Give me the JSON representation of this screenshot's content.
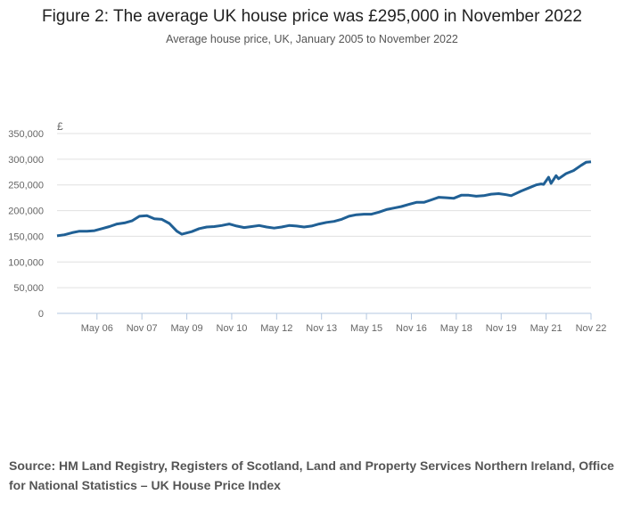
{
  "title": "Figure 2: The average UK house price was £295,000 in November 2022",
  "subtitle": "Average house price, UK, January 2005 to November 2022",
  "source": "Source: HM Land Registry, Registers of Scotland, Land and Property Services Northern Ireland, Office for National Statistics – UK House Price Index",
  "chart_data": {
    "type": "line",
    "title": "Figure 2: The average UK house price was £295,000 in November 2022",
    "ylabel": "£",
    "xlabel": "",
    "ylim": [
      0,
      350000
    ],
    "xlim": [
      "2005-01",
      "2022-11"
    ],
    "yticks": [
      0,
      50000,
      100000,
      150000,
      200000,
      250000,
      300000,
      350000
    ],
    "ytick_labels": [
      "0",
      "50,000",
      "100,000",
      "150,000",
      "200,000",
      "250,000",
      "300,000",
      "350,000"
    ],
    "xticks": [
      "2006-05",
      "2007-11",
      "2009-05",
      "2010-11",
      "2012-05",
      "2013-11",
      "2015-05",
      "2016-11",
      "2018-05",
      "2019-11",
      "2021-05",
      "2022-11"
    ],
    "xtick_labels": [
      "May 06",
      "Nov 07",
      "May 09",
      "Nov 10",
      "May 12",
      "Nov 13",
      "May 15",
      "Nov 16",
      "May 18",
      "Nov 19",
      "May 21",
      "Nov 22"
    ],
    "grid": true,
    "color": "#206095",
    "series": [
      {
        "x": [
          "2005-01",
          "2005-04",
          "2005-07",
          "2005-10",
          "2006-01",
          "2006-04",
          "2006-07",
          "2006-10",
          "2007-01",
          "2007-04",
          "2007-07",
          "2007-10",
          "2008-01",
          "2008-04",
          "2008-07",
          "2008-10",
          "2009-01",
          "2009-03",
          "2009-07",
          "2009-10",
          "2010-01",
          "2010-04",
          "2010-07",
          "2010-10",
          "2011-01",
          "2011-04",
          "2011-07",
          "2011-10",
          "2012-01",
          "2012-04",
          "2012-07",
          "2012-10",
          "2013-01",
          "2013-04",
          "2013-07",
          "2013-10",
          "2014-01",
          "2014-04",
          "2014-07",
          "2014-10",
          "2015-01",
          "2015-04",
          "2015-07",
          "2015-10",
          "2016-01",
          "2016-04",
          "2016-07",
          "2016-10",
          "2017-01",
          "2017-04",
          "2017-07",
          "2017-10",
          "2018-01",
          "2018-04",
          "2018-07",
          "2018-10",
          "2019-01",
          "2019-04",
          "2019-07",
          "2019-10",
          "2020-01",
          "2020-03",
          "2020-07",
          "2020-10",
          "2021-01",
          "2021-03",
          "2021-04",
          "2021-06",
          "2021-07",
          "2021-09",
          "2021-10",
          "2022-01",
          "2022-04",
          "2022-07",
          "2022-09",
          "2022-11"
        ],
        "values": [
          151000,
          153000,
          157000,
          160000,
          160000,
          161000,
          165000,
          169000,
          174000,
          176000,
          180000,
          189000,
          190000,
          184000,
          183000,
          175000,
          160000,
          154000,
          159000,
          165000,
          168000,
          169000,
          171000,
          174000,
          170000,
          167000,
          169000,
          171000,
          168000,
          166000,
          168000,
          171000,
          170000,
          168000,
          170000,
          174000,
          177000,
          179000,
          183000,
          189000,
          192000,
          193000,
          193000,
          197000,
          202000,
          205000,
          208000,
          212000,
          216000,
          216000,
          221000,
          226000,
          225000,
          224000,
          230000,
          230000,
          228000,
          229000,
          232000,
          233000,
          231000,
          229000,
          238000,
          244000,
          250000,
          252000,
          251000,
          265000,
          253000,
          268000,
          262000,
          272000,
          278000,
          288000,
          294000,
          295000
        ]
      }
    ]
  }
}
